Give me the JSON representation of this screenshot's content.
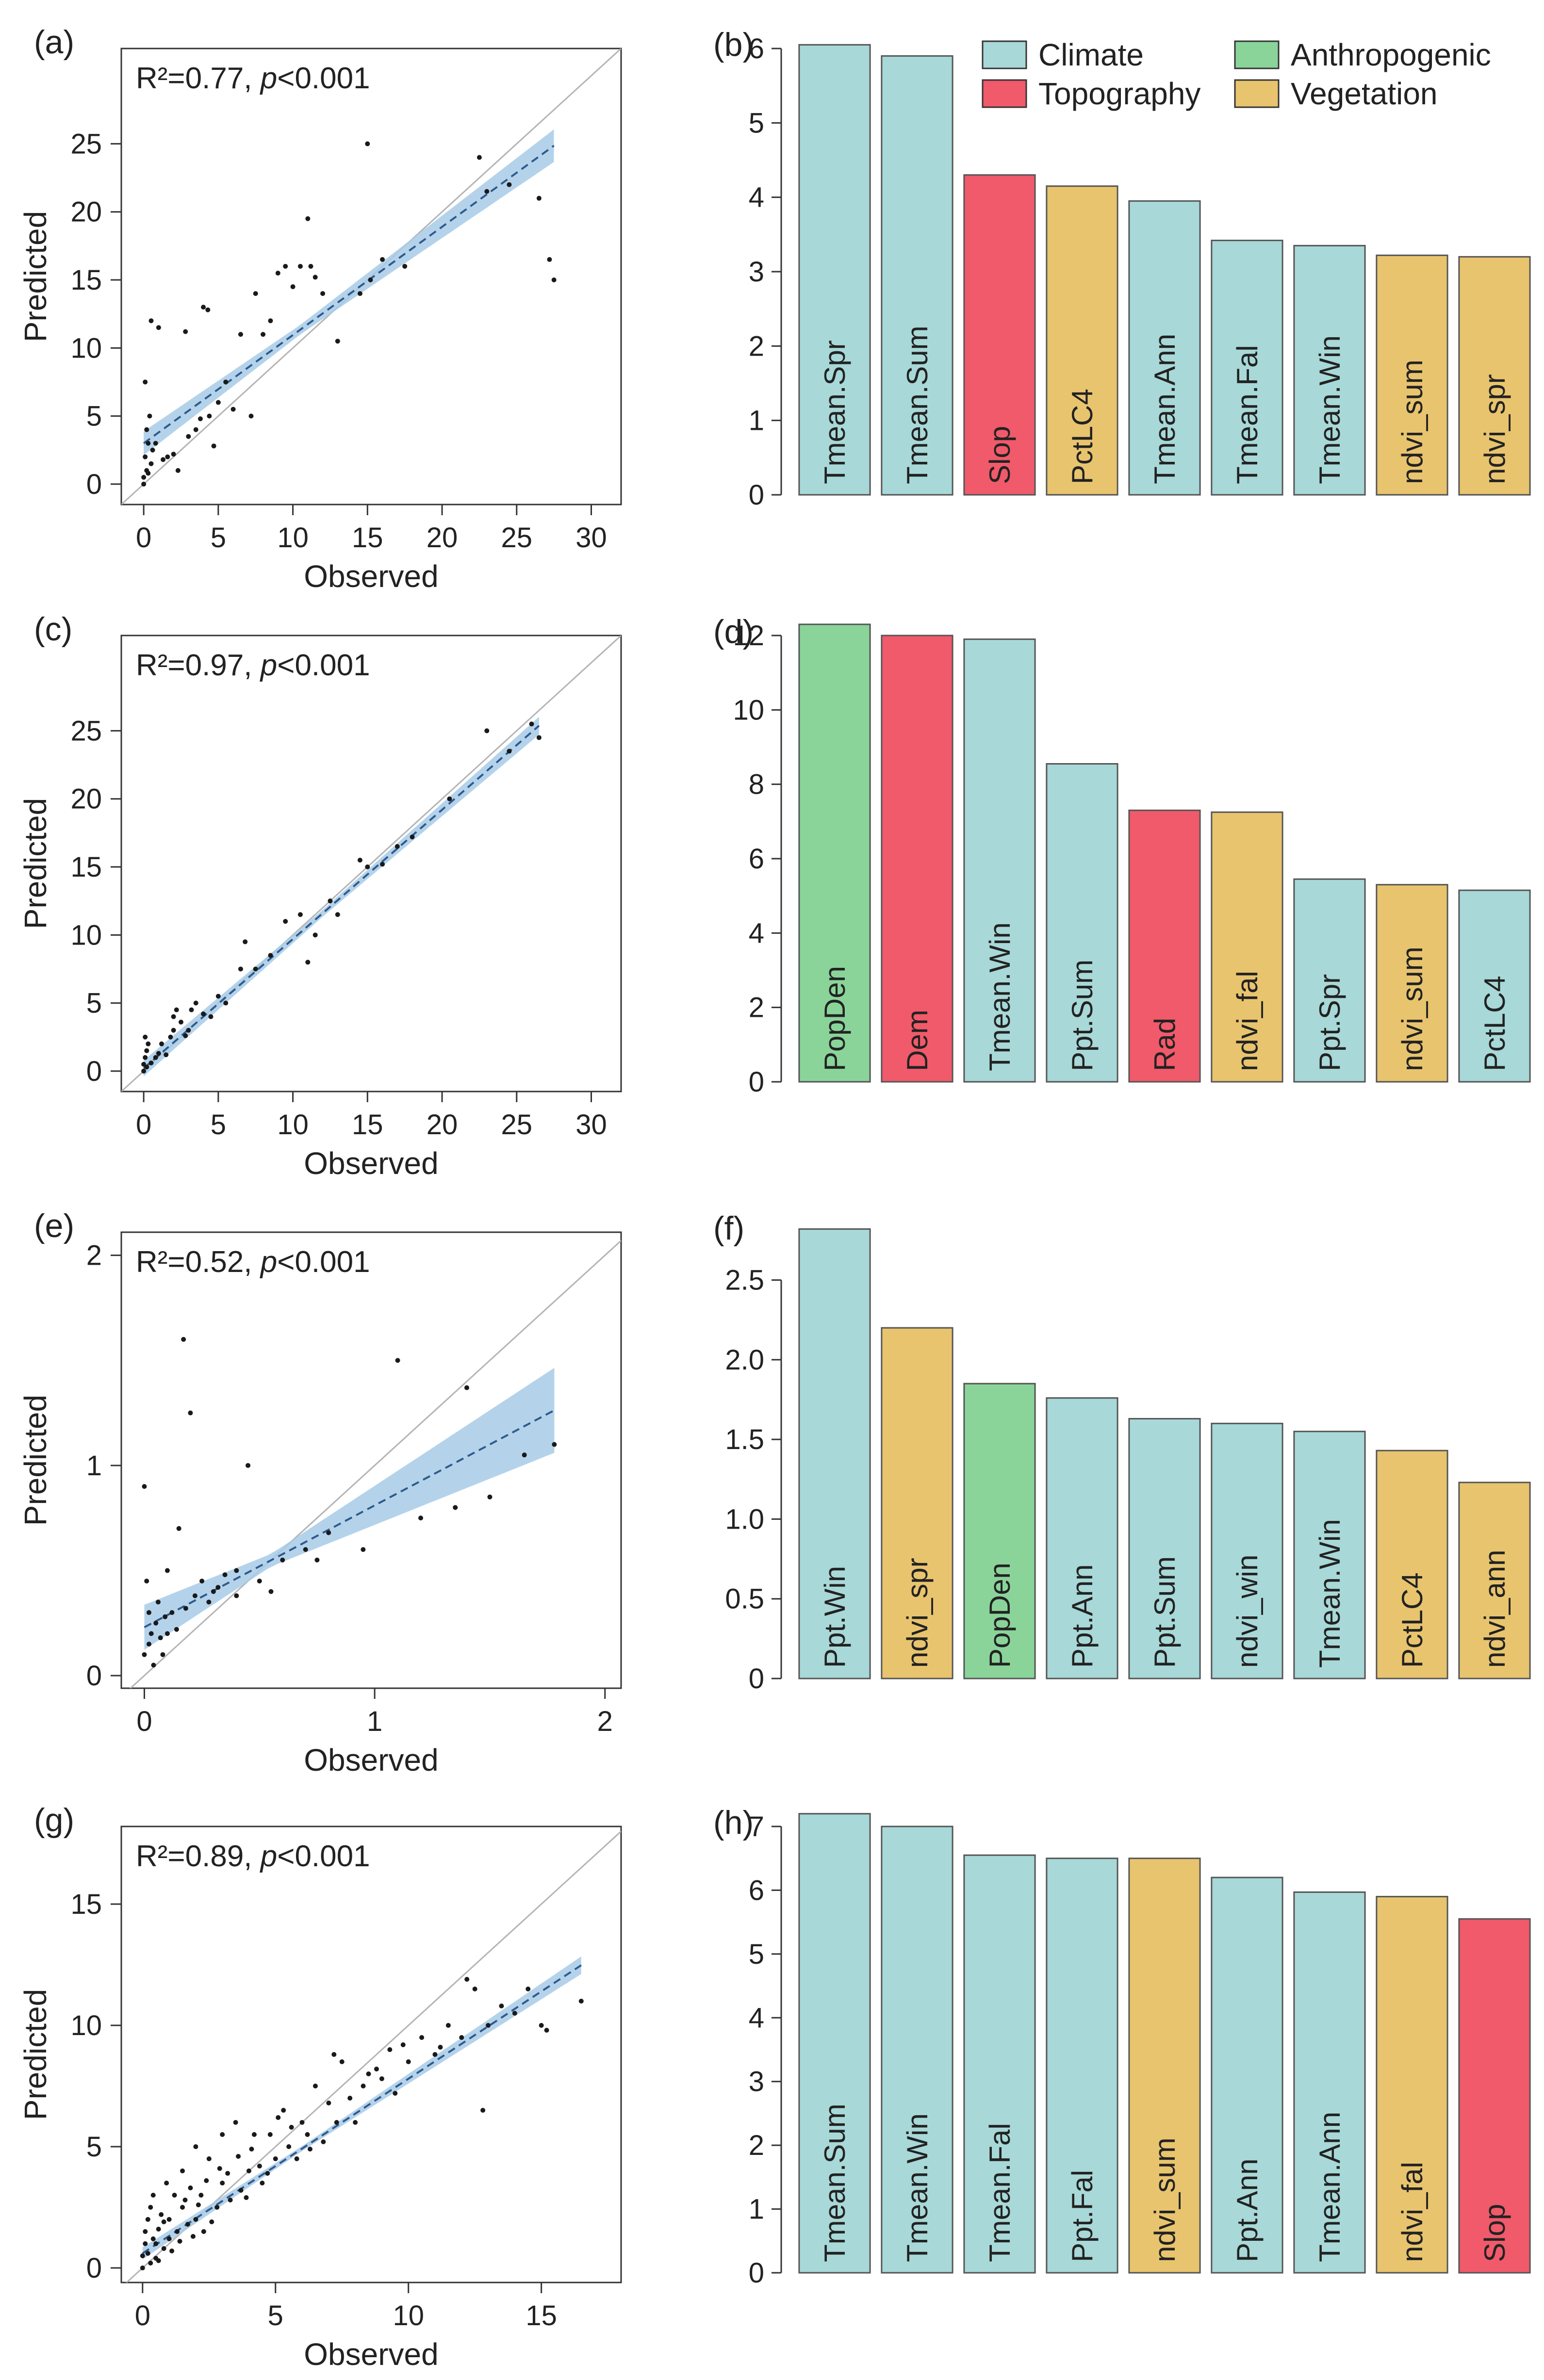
{
  "colors": {
    "Climate": "#a8d8d8",
    "Topography": "#f05a6a",
    "Anthropogenic": "#8ad49a",
    "Vegetation": "#e8c46e",
    "ci_band": "#a7cbe8",
    "fit_line": "#2e5a8c",
    "one_to_one": "#b4b4b4",
    "points": "#1a1a1a",
    "bar_edge": "#555555"
  },
  "legend": {
    "items": [
      {
        "name": "Climate",
        "label": "Climate"
      },
      {
        "name": "Topography",
        "label": "Topography"
      },
      {
        "name": "Anthropogenic",
        "label": "Anthropogenic"
      },
      {
        "name": "Vegetation",
        "label": "Vegetation"
      }
    ]
  },
  "chart_data": [
    {
      "id": "a",
      "panel_label": "(a)",
      "type": "scatter",
      "xlabel": "Observed",
      "ylabel": "Predicted",
      "xlim": [
        -1.5,
        32
      ],
      "ylim": [
        -1.5,
        32
      ],
      "xticks": [
        0,
        5,
        10,
        15,
        20,
        25,
        30
      ],
      "yticks": [
        0,
        5,
        10,
        15,
        20,
        25
      ],
      "stat_r2": "R²=0.77, ",
      "stat_p_italic": "p",
      "stat_p_rest": "<0.001",
      "fit": {
        "slope": 0.795,
        "intercept": 3.0
      },
      "fit_range": [
        0,
        27.5
      ],
      "ci": {
        "center": 10.5,
        "min": 0.35,
        "growth": 0.05
      },
      "points": [
        [
          0,
          0
        ],
        [
          0,
          0.5
        ],
        [
          0.2,
          1
        ],
        [
          0.1,
          2
        ],
        [
          0.3,
          3
        ],
        [
          0.2,
          4
        ],
        [
          0.4,
          5
        ],
        [
          0.1,
          7.5
        ],
        [
          0.5,
          1.5
        ],
        [
          0.3,
          0.8
        ],
        [
          0.6,
          2.5
        ],
        [
          0.8,
          3
        ],
        [
          0.5,
          12
        ],
        [
          1,
          11.5
        ],
        [
          1.3,
          1.8
        ],
        [
          1.6,
          2
        ],
        [
          2,
          2.2
        ],
        [
          2.3,
          1
        ],
        [
          2.8,
          11.2
        ],
        [
          3,
          3.5
        ],
        [
          3.5,
          4
        ],
        [
          3.8,
          4.8
        ],
        [
          4,
          13
        ],
        [
          4.3,
          12.8
        ],
        [
          4.7,
          2.8
        ],
        [
          4.4,
          5
        ],
        [
          5,
          6
        ],
        [
          5.5,
          7.5
        ],
        [
          6,
          5.5
        ],
        [
          6.5,
          11
        ],
        [
          7.2,
          5
        ],
        [
          7.5,
          14
        ],
        [
          8,
          11
        ],
        [
          8.5,
          12
        ],
        [
          9,
          15.5
        ],
        [
          9.5,
          16
        ],
        [
          10,
          14.5
        ],
        [
          10.5,
          16
        ],
        [
          11,
          19.5
        ],
        [
          11.2,
          16
        ],
        [
          11.5,
          15.2
        ],
        [
          12,
          14
        ],
        [
          13,
          10.5
        ],
        [
          14.5,
          14
        ],
        [
          15,
          25
        ],
        [
          15.2,
          15
        ],
        [
          16,
          16.5
        ],
        [
          17.5,
          16
        ],
        [
          22.5,
          24
        ],
        [
          23,
          21.5
        ],
        [
          24.5,
          22
        ],
        [
          26.5,
          21
        ],
        [
          27.2,
          16.5
        ],
        [
          27.5,
          15
        ]
      ]
    },
    {
      "id": "b",
      "panel_label": "(b)",
      "type": "bar",
      "ylim": [
        0,
        6
      ],
      "yticks": [
        0,
        1,
        2,
        3,
        4,
        5,
        6
      ],
      "categories": [
        "Tmean.Spr",
        "Tmean.Sum",
        "Slop",
        "PctLC4",
        "Tmean.Ann",
        "Tmean.Fal",
        "Tmean.Win",
        "ndvi_sum",
        "ndvi_spr"
      ],
      "values": [
        6.05,
        5.9,
        4.3,
        4.15,
        3.95,
        3.42,
        3.35,
        3.22,
        3.2
      ],
      "groups": [
        "Climate",
        "Climate",
        "Topography",
        "Vegetation",
        "Climate",
        "Climate",
        "Climate",
        "Vegetation",
        "Vegetation"
      ],
      "show_legend": true
    },
    {
      "id": "c",
      "panel_label": "(c)",
      "type": "scatter",
      "xlabel": "Observed",
      "ylabel": "Predicted",
      "xlim": [
        -1.5,
        32
      ],
      "ylim": [
        -1.5,
        32
      ],
      "xticks": [
        0,
        5,
        10,
        15,
        20,
        25,
        30
      ],
      "yticks": [
        0,
        5,
        10,
        15,
        20,
        25
      ],
      "stat_r2": "R²=0.97, ",
      "stat_p_italic": "p",
      "stat_p_rest": "<0.001",
      "fit": {
        "slope": 0.95,
        "intercept": 0.2
      },
      "fit_range": [
        0,
        26.5
      ],
      "ci": {
        "center": 12,
        "min": 0.25,
        "growth": 0.028
      },
      "points": [
        [
          0,
          0
        ],
        [
          0,
          0.5
        ],
        [
          0.1,
          1
        ],
        [
          0.2,
          1.5
        ],
        [
          0.3,
          2
        ],
        [
          0.1,
          2.5
        ],
        [
          0.2,
          0.3
        ],
        [
          0.5,
          0.6
        ],
        [
          0.8,
          1
        ],
        [
          1,
          1.3
        ],
        [
          1.2,
          2
        ],
        [
          1.5,
          1.2
        ],
        [
          1.8,
          2.5
        ],
        [
          2,
          3
        ],
        [
          2,
          4
        ],
        [
          2.2,
          4.5
        ],
        [
          2.5,
          3.6
        ],
        [
          2.8,
          2.6
        ],
        [
          3,
          3
        ],
        [
          3.2,
          4.5
        ],
        [
          3.5,
          5
        ],
        [
          4,
          4.2
        ],
        [
          4.5,
          4
        ],
        [
          5,
          5.5
        ],
        [
          5.5,
          5
        ],
        [
          6.5,
          7.5
        ],
        [
          6.8,
          9.5
        ],
        [
          7.5,
          7.5
        ],
        [
          8.5,
          8.5
        ],
        [
          9.5,
          11
        ],
        [
          10.5,
          11.5
        ],
        [
          11,
          8
        ],
        [
          11.5,
          10
        ],
        [
          12.5,
          12.5
        ],
        [
          13,
          11.5
        ],
        [
          14.5,
          15.5
        ],
        [
          15,
          15
        ],
        [
          17,
          16.5
        ],
        [
          23,
          25
        ],
        [
          26,
          25.5
        ],
        [
          26.5,
          24.5
        ],
        [
          24.5,
          23.5
        ],
        [
          20.5,
          20
        ],
        [
          18,
          17.2
        ],
        [
          16,
          15.2
        ]
      ]
    },
    {
      "id": "d",
      "panel_label": "(d)",
      "type": "bar",
      "ylim": [
        0,
        12
      ],
      "yticks": [
        0,
        2,
        4,
        6,
        8,
        10,
        12
      ],
      "categories": [
        "PopDen",
        "Dem",
        "Tmean.Win",
        "Ppt.Sum",
        "Rad",
        "ndvi_fal",
        "Ppt.Spr",
        "ndvi_sum",
        "PctLC4"
      ],
      "values": [
        12.3,
        12.0,
        11.9,
        8.55,
        7.3,
        7.25,
        5.45,
        5.3,
        5.15
      ],
      "groups": [
        "Anthropogenic",
        "Topography",
        "Climate",
        "Climate",
        "Topography",
        "Vegetation",
        "Climate",
        "Vegetation",
        "Climate"
      ],
      "show_legend": false
    },
    {
      "id": "e",
      "panel_label": "(e)",
      "type": "scatter",
      "xlabel": "Observed",
      "ylabel": "Predicted",
      "xlim": [
        -0.1,
        2.07
      ],
      "ylim": [
        -0.06,
        2.11
      ],
      "xticks": [
        0,
        1,
        2
      ],
      "yticks": [
        0,
        1,
        2
      ],
      "stat_r2": "R²=0.52, ",
      "stat_p_italic": "p",
      "stat_p_rest": "<0.001",
      "fit": {
        "slope": 0.58,
        "intercept": 0.23
      },
      "fit_range": [
        0,
        1.78
      ],
      "ci": {
        "center": 0.55,
        "min": 0.03,
        "growth": 0.14
      },
      "points": [
        [
          0,
          0.9
        ],
        [
          0,
          0.1
        ],
        [
          0.02,
          0.3
        ],
        [
          0.01,
          0.45
        ],
        [
          0.03,
          0.2
        ],
        [
          0.05,
          0.25
        ],
        [
          0.02,
          0.15
        ],
        [
          0.06,
          0.35
        ],
        [
          0.08,
          0.1
        ],
        [
          0.1,
          0.2
        ],
        [
          0.1,
          0.5
        ],
        [
          0.12,
          0.3
        ],
        [
          0.15,
          0.7
        ],
        [
          0.17,
          1.6
        ],
        [
          0.2,
          1.25
        ],
        [
          0.25,
          0.45
        ],
        [
          0.3,
          0.4
        ],
        [
          0.35,
          0.48
        ],
        [
          0.4,
          0.5
        ],
        [
          0.45,
          1.0
        ],
        [
          0.5,
          0.45
        ],
        [
          0.55,
          0.4
        ],
        [
          0.6,
          0.55
        ],
        [
          0.7,
          0.6
        ],
        [
          0.75,
          0.55
        ],
        [
          0.8,
          0.68
        ],
        [
          0.95,
          0.6
        ],
        [
          1.1,
          1.5
        ],
        [
          1.2,
          0.75
        ],
        [
          1.35,
          0.8
        ],
        [
          1.4,
          1.37
        ],
        [
          1.5,
          0.85
        ],
        [
          1.65,
          1.05
        ],
        [
          1.78,
          1.1
        ],
        [
          0.04,
          0.05
        ],
        [
          0.07,
          0.18
        ],
        [
          0.09,
          0.28
        ],
        [
          0.14,
          0.22
        ],
        [
          0.18,
          0.32
        ],
        [
          0.22,
          0.38
        ],
        [
          0.28,
          0.35
        ],
        [
          0.32,
          0.42
        ],
        [
          0.4,
          0.38
        ]
      ]
    },
    {
      "id": "f",
      "panel_label": "(f)",
      "type": "bar",
      "ylim": [
        0,
        2.8
      ],
      "yticks": [
        0,
        0.5,
        1.0,
        1.5,
        2.0,
        2.5
      ],
      "yticklabels": [
        "0",
        "0.5",
        "1.0",
        "1.5",
        "2.0",
        "2.5"
      ],
      "categories": [
        "Ppt.Win",
        "ndvi_spr",
        "PopDen",
        "Ppt.Ann",
        "Ppt.Sum",
        "ndvi_win",
        "Tmean.Win",
        "PctLC4",
        "ndvi_ann"
      ],
      "values": [
        2.82,
        2.2,
        1.85,
        1.76,
        1.63,
        1.6,
        1.55,
        1.43,
        1.23
      ],
      "groups": [
        "Climate",
        "Vegetation",
        "Anthropogenic",
        "Climate",
        "Climate",
        "Climate",
        "Climate",
        "Vegetation",
        "Vegetation"
      ],
      "show_legend": false
    },
    {
      "id": "g",
      "panel_label": "(g)",
      "type": "scatter",
      "xlabel": "Observed",
      "ylabel": "Predicted",
      "xlim": [
        -0.8,
        18
      ],
      "ylim": [
        -0.6,
        18.2
      ],
      "xticks": [
        0,
        5,
        10,
        15
      ],
      "yticks": [
        0,
        5,
        10,
        15
      ],
      "stat_r2": "R²=0.89, ",
      "stat_p_italic": "p",
      "stat_p_rest": "<0.001",
      "fit": {
        "slope": 0.72,
        "intercept": 0.6
      },
      "fit_range": [
        0,
        16.5
      ],
      "ci": {
        "center": 6,
        "min": 0.1,
        "growth": 0.025
      },
      "points": [
        [
          0,
          0
        ],
        [
          0,
          0.5
        ],
        [
          0.1,
          1
        ],
        [
          0.1,
          1.5
        ],
        [
          0.2,
          2
        ],
        [
          0.3,
          0.2
        ],
        [
          0.3,
          2.5
        ],
        [
          0.4,
          3
        ],
        [
          0.5,
          1
        ],
        [
          0.5,
          0.4
        ],
        [
          0.6,
          1.6
        ],
        [
          0.7,
          2.2
        ],
        [
          0.8,
          0.8
        ],
        [
          0.9,
          3.5
        ],
        [
          1,
          1.2
        ],
        [
          1,
          2
        ],
        [
          1.2,
          3
        ],
        [
          1.3,
          1.5
        ],
        [
          1.5,
          2.5
        ],
        [
          1.5,
          4
        ],
        [
          1.7,
          1.8
        ],
        [
          1.8,
          3.3
        ],
        [
          2,
          2
        ],
        [
          2,
          5
        ],
        [
          2.2,
          3
        ],
        [
          2.3,
          1.5
        ],
        [
          2.5,
          4.5
        ],
        [
          2.8,
          2.5
        ],
        [
          3,
          3.5
        ],
        [
          3,
          5.5
        ],
        [
          3.3,
          2.8
        ],
        [
          3.5,
          6
        ],
        [
          3.7,
          3.2
        ],
        [
          4,
          4
        ],
        [
          4.2,
          5.5
        ],
        [
          4.5,
          3.5
        ],
        [
          4.8,
          5.5
        ],
        [
          5,
          4.5
        ],
        [
          5.3,
          6.5
        ],
        [
          5.5,
          5
        ],
        [
          5.8,
          4.5
        ],
        [
          6,
          6
        ],
        [
          6.2,
          5.5
        ],
        [
          6.5,
          7.5
        ],
        [
          6.8,
          5.2
        ],
        [
          7,
          6.8
        ],
        [
          7.3,
          6
        ],
        [
          7.5,
          8.5
        ],
        [
          7.8,
          7
        ],
        [
          8,
          6
        ],
        [
          8.3,
          7.5
        ],
        [
          8.5,
          8
        ],
        [
          9,
          7.8
        ],
        [
          9.3,
          9
        ],
        [
          9.5,
          7.2
        ],
        [
          10,
          8.5
        ],
        [
          10.5,
          9.5
        ],
        [
          11,
          8.8
        ],
        [
          11.5,
          10
        ],
        [
          12,
          9.5
        ],
        [
          12.5,
          11.5
        ],
        [
          12.8,
          6.5
        ],
        [
          13,
          10
        ],
        [
          13.5,
          10.8
        ],
        [
          14,
          10.5
        ],
        [
          14.5,
          11.5
        ],
        [
          15,
          10
        ],
        [
          15.2,
          9.8
        ],
        [
          16.5,
          11
        ],
        [
          0.2,
          0.6
        ],
        [
          0.4,
          1.2
        ],
        [
          0.6,
          0.3
        ],
        [
          0.8,
          1.9
        ],
        [
          1.1,
          0.7
        ],
        [
          1.4,
          1.1
        ],
        [
          1.6,
          2.8
        ],
        [
          1.9,
          1.3
        ],
        [
          2.1,
          2.6
        ],
        [
          2.4,
          3.6
        ],
        [
          2.6,
          1.9
        ],
        [
          2.9,
          4.1
        ],
        [
          3.2,
          3.9
        ],
        [
          3.6,
          4.6
        ],
        [
          3.9,
          2.9
        ],
        [
          4.1,
          4.9
        ],
        [
          4.4,
          4.2
        ],
        [
          4.7,
          3.9
        ],
        [
          5.1,
          6.2
        ],
        [
          5.6,
          5.8
        ],
        [
          6.3,
          4.9
        ],
        [
          7.2,
          8.8
        ],
        [
          8.8,
          8.2
        ],
        [
          9.8,
          9.2
        ],
        [
          11.2,
          9.1
        ],
        [
          12.2,
          11.9
        ]
      ]
    },
    {
      "id": "h",
      "panel_label": "(h)",
      "type": "bar",
      "ylim": [
        0,
        7
      ],
      "yticks": [
        0,
        1,
        2,
        3,
        4,
        5,
        6,
        7
      ],
      "categories": [
        "Tmean.Sum",
        "Tmean.Win",
        "Tmean.Fal",
        "Ppt.Fal",
        "ndvi_sum",
        "Ppt.Ann",
        "Tmean.Ann",
        "ndvi_fal",
        "Slop"
      ],
      "values": [
        7.2,
        7.0,
        6.55,
        6.5,
        6.5,
        6.2,
        5.97,
        5.9,
        5.55
      ],
      "groups": [
        "Climate",
        "Climate",
        "Climate",
        "Climate",
        "Vegetation",
        "Climate",
        "Climate",
        "Vegetation",
        "Topography"
      ],
      "show_legend": false
    }
  ]
}
